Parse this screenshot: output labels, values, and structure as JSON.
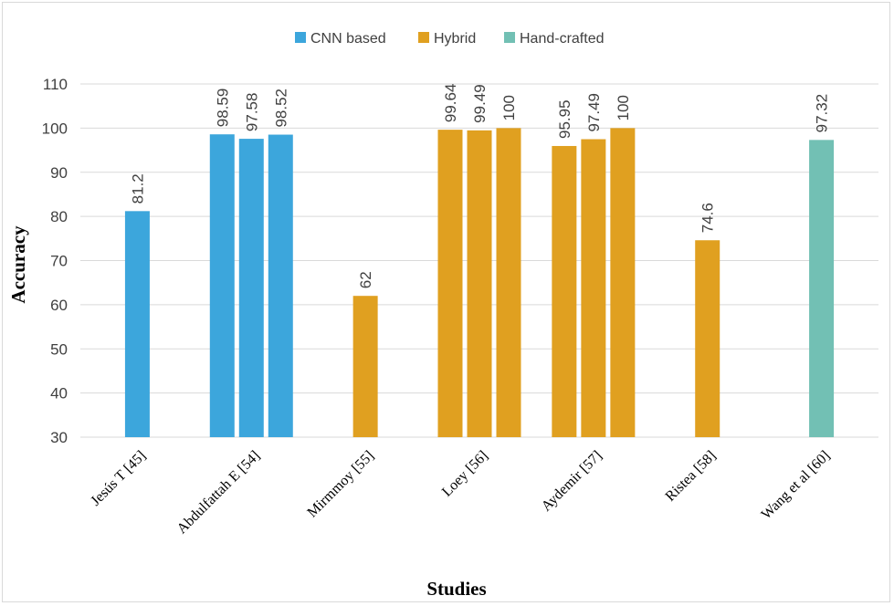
{
  "chart_data": {
    "type": "bar",
    "xlabel": "Studies",
    "ylabel": "Accuracy",
    "ylim": [
      30,
      110
    ],
    "yticks": [
      30,
      40,
      50,
      60,
      70,
      80,
      90,
      100,
      110
    ],
    "grid": true,
    "legend_position": "top-center",
    "groups": [
      {
        "name": "CNN based",
        "color": "#3ca6dc"
      },
      {
        "name": "Hybrid",
        "color": "#e0a020"
      },
      {
        "name": "Hand-crafted",
        "color": "#72c0b4"
      }
    ],
    "categories": [
      {
        "label": "Jesús T [45]",
        "bars": [
          {
            "value": 81.2,
            "label": "81.2",
            "group": 0
          }
        ]
      },
      {
        "label": "Abdulfattah E [54]",
        "bars": [
          {
            "value": 98.59,
            "label": "98.59",
            "group": 0
          },
          {
            "value": 97.58,
            "label": "97.58",
            "group": 0
          },
          {
            "value": 98.52,
            "label": "98.52",
            "group": 0
          }
        ]
      },
      {
        "label": "Mirmmoy [55]",
        "bars": [
          {
            "value": 62,
            "label": "62",
            "group": 1
          }
        ]
      },
      {
        "label": "Loey [56]",
        "bars": [
          {
            "value": 99.64,
            "label": "99.64",
            "group": 1
          },
          {
            "value": 99.49,
            "label": "99.49",
            "group": 1
          },
          {
            "value": 100,
            "label": "100",
            "group": 1
          }
        ]
      },
      {
        "label": "Aydemir [57]",
        "bars": [
          {
            "value": 95.95,
            "label": "95.95",
            "group": 1
          },
          {
            "value": 97.49,
            "label": "97.49",
            "group": 1
          },
          {
            "value": 100,
            "label": "100",
            "group": 1
          }
        ]
      },
      {
        "label": "Ristea [58]",
        "bars": [
          {
            "value": 74.6,
            "label": "74.6",
            "group": 1
          }
        ]
      },
      {
        "label": "Wang et al [60]",
        "bars": [
          {
            "value": 97.32,
            "label": "97.32",
            "group": 2
          }
        ]
      }
    ]
  }
}
